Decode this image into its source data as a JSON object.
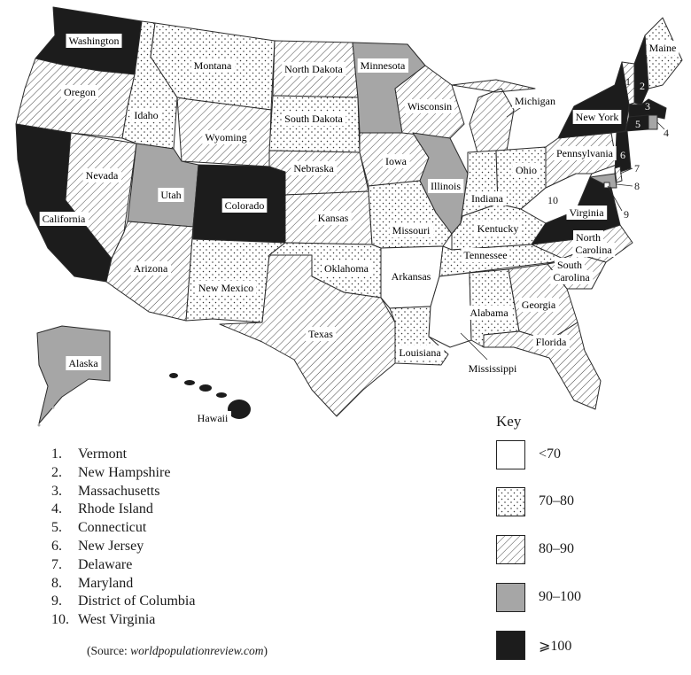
{
  "legend": {
    "title": "Key",
    "items": [
      {
        "label": "<70",
        "fill": "white"
      },
      {
        "label": "70–80",
        "fill": "dots"
      },
      {
        "label": "80–90",
        "fill": "hatch"
      },
      {
        "label": "90–100",
        "fill": "grey"
      },
      {
        "label": "⩾100",
        "fill": "black"
      }
    ]
  },
  "colors": {
    "white": "#ffffff",
    "grey": "#a6a6a6",
    "black": "#1c1c1c",
    "line": "#2a2a2a"
  },
  "numbered_states": [
    {
      "num": "1.",
      "name": "Vermont"
    },
    {
      "num": "2.",
      "name": "New Hampshire"
    },
    {
      "num": "3.",
      "name": "Massachusetts"
    },
    {
      "num": "4.",
      "name": "Rhode Island"
    },
    {
      "num": "5.",
      "name": "Connecticut"
    },
    {
      "num": "6.",
      "name": "New Jersey"
    },
    {
      "num": "7.",
      "name": "Delaware"
    },
    {
      "num": "8.",
      "name": "Maryland"
    },
    {
      "num": "9.",
      "name": "District of Columbia"
    },
    {
      "num": "10.",
      "name": "West Virginia"
    }
  ],
  "source": {
    "prefix": "(Source: ",
    "site": "worldpopulationreview.com",
    "suffix": ")"
  },
  "states": [
    {
      "id": "washington",
      "label": "Washington",
      "category": "⩾100"
    },
    {
      "id": "oregon",
      "label": "Oregon",
      "category": "80–90"
    },
    {
      "id": "california",
      "label": "California",
      "category": "⩾100"
    },
    {
      "id": "nevada",
      "label": "Nevada",
      "category": "80–90"
    },
    {
      "id": "idaho",
      "label": "Idaho",
      "category": "70–80"
    },
    {
      "id": "montana",
      "label": "Montana",
      "category": "70–80"
    },
    {
      "id": "wyoming",
      "label": "Wyoming",
      "category": "80–90"
    },
    {
      "id": "utah",
      "label": "Utah",
      "category": "90–100"
    },
    {
      "id": "colorado",
      "label": "Colorado",
      "category": "⩾100"
    },
    {
      "id": "arizona",
      "label": "Arizona",
      "category": "80–90"
    },
    {
      "id": "new-mexico",
      "label": "New Mexico",
      "category": "70–80"
    },
    {
      "id": "north-dakota",
      "label": "North Dakota",
      "category": "80–90"
    },
    {
      "id": "south-dakota",
      "label": "South Dakota",
      "category": "70–80"
    },
    {
      "id": "nebraska",
      "label": "Nebraska",
      "category": "80–90"
    },
    {
      "id": "kansas",
      "label": "Kansas",
      "category": "80–90"
    },
    {
      "id": "oklahoma",
      "label": "Oklahoma",
      "category": "70–80"
    },
    {
      "id": "texas",
      "label": "Texas",
      "category": "80–90"
    },
    {
      "id": "minnesota",
      "label": "Minnesota",
      "category": "90–100"
    },
    {
      "id": "iowa",
      "label": "Iowa",
      "category": "80–90"
    },
    {
      "id": "missouri",
      "label": "Missouri",
      "category": "70–80"
    },
    {
      "id": "arkansas",
      "label": "Arkansas",
      "category": "<70"
    },
    {
      "id": "louisiana",
      "label": "Louisiana",
      "category": "70–80"
    },
    {
      "id": "wisconsin",
      "label": "Wisconsin",
      "category": "80–90"
    },
    {
      "id": "illinois",
      "label": "Illinois",
      "category": "90–100"
    },
    {
      "id": "michigan",
      "label": "Michigan",
      "category": "80–90"
    },
    {
      "id": "indiana",
      "label": "Indiana",
      "category": "70–80"
    },
    {
      "id": "ohio",
      "label": "Ohio",
      "category": "70–80"
    },
    {
      "id": "kentucky",
      "label": "Kentucky",
      "category": "70–80"
    },
    {
      "id": "tennessee",
      "label": "Tennessee",
      "category": "70–80"
    },
    {
      "id": "mississippi",
      "label": "Mississippi",
      "category": "<70"
    },
    {
      "id": "alabama",
      "label": "Alabama",
      "category": "70–80"
    },
    {
      "id": "georgia",
      "label": "Georgia",
      "category": "80–90"
    },
    {
      "id": "florida",
      "label": "Florida",
      "category": "80–90"
    },
    {
      "id": "south-carolina",
      "label": "South Carolina",
      "category": "80–90"
    },
    {
      "id": "north-carolina",
      "label": "North Carolina",
      "category": "80–90"
    },
    {
      "id": "virginia",
      "label": "Virginia",
      "category": "⩾100"
    },
    {
      "id": "west-virginia",
      "label": "10",
      "category": "<70"
    },
    {
      "id": "pennsylvania",
      "label": "Pennsylvania",
      "category": "80–90"
    },
    {
      "id": "new-york",
      "label": "New York",
      "category": "⩾100"
    },
    {
      "id": "maine",
      "label": "Maine",
      "category": "70–80"
    },
    {
      "id": "vermont",
      "label": "1",
      "category": "80–90"
    },
    {
      "id": "new-hampshire",
      "label": "2",
      "category": "⩾100"
    },
    {
      "id": "massachusetts",
      "label": "3",
      "category": "⩾100"
    },
    {
      "id": "rhode-island",
      "label": "4",
      "category": "90–100"
    },
    {
      "id": "connecticut",
      "label": "5",
      "category": "⩾100"
    },
    {
      "id": "new-jersey",
      "label": "6",
      "category": "⩾100"
    },
    {
      "id": "delaware",
      "label": "7",
      "category": "80–90"
    },
    {
      "id": "maryland",
      "label": "8",
      "category": "90–100"
    },
    {
      "id": "district-of-columbia",
      "label": "9",
      "category": "<70"
    },
    {
      "id": "alaska",
      "label": "Alaska",
      "category": "90–100"
    },
    {
      "id": "hawaii",
      "label": "Hawaii",
      "category": "⩾100"
    }
  ]
}
